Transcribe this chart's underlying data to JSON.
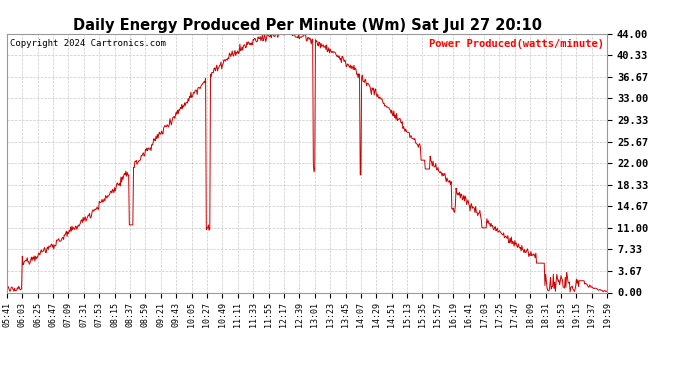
{
  "title": "Daily Energy Produced Per Minute (Wm) Sat Jul 27 20:10",
  "copyright": "Copyright 2024 Cartronics.com",
  "legend_label": "Power Produced(watts/minute)",
  "bg_color": "#FFFFFF",
  "line_color": "#CC0000",
  "grid_color": "#BBBBBB",
  "ymin": 0,
  "ymax": 44,
  "yticks": [
    0,
    3.67,
    7.33,
    11.0,
    14.67,
    18.33,
    22.0,
    25.67,
    29.33,
    33.0,
    36.67,
    40.33,
    44.0
  ],
  "xtick_labels": [
    "05:41",
    "06:03",
    "06:25",
    "06:47",
    "07:09",
    "07:31",
    "07:53",
    "08:15",
    "08:37",
    "08:59",
    "09:21",
    "09:43",
    "10:05",
    "10:27",
    "10:49",
    "11:11",
    "11:33",
    "11:55",
    "12:17",
    "12:39",
    "13:01",
    "13:23",
    "13:45",
    "14:07",
    "14:29",
    "14:51",
    "15:13",
    "15:35",
    "15:57",
    "16:19",
    "16:41",
    "17:03",
    "17:25",
    "17:47",
    "18:09",
    "18:31",
    "18:53",
    "19:15",
    "19:37",
    "19:59"
  ]
}
